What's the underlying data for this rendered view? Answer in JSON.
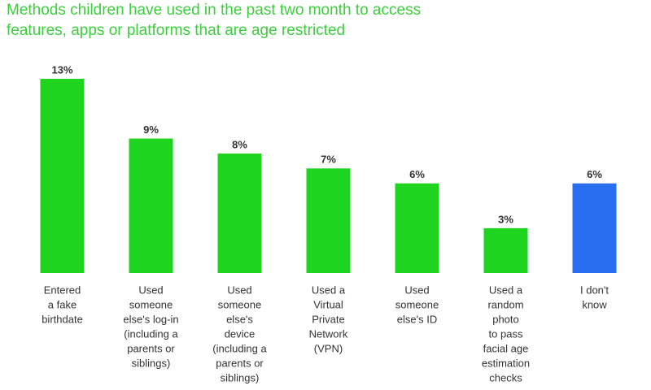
{
  "chart_data": {
    "type": "bar",
    "title": [
      "Methods children have used in the past two month to access",
      "features, apps or platforms that are age restricted"
    ],
    "categories": [
      [
        "Entered",
        "a fake",
        "birthdate"
      ],
      [
        "Used",
        "someone",
        "else's log-in",
        "(including a",
        "parents or",
        "siblings)"
      ],
      [
        "Used",
        "someone",
        "else's",
        "device",
        "(including a",
        "parents or",
        "siblings)"
      ],
      [
        "Used a",
        "Virtual",
        "Private",
        "Network",
        "(VPN)"
      ],
      [
        "Used",
        "someone",
        "else's ID"
      ],
      [
        "Used a",
        "random",
        "photo",
        "to pass",
        "facial age",
        "estimation",
        "checks"
      ],
      [
        "I don't",
        "know"
      ]
    ],
    "values": [
      13,
      9,
      8,
      7,
      6,
      3,
      6
    ],
    "value_labels": [
      "13%",
      "9%",
      "8%",
      "7%",
      "6%",
      "3%",
      "6%"
    ],
    "colors": [
      "#1ed41e",
      "#1ed41e",
      "#1ed41e",
      "#1ed41e",
      "#1ed41e",
      "#1ed41e",
      "#2a6ef0"
    ],
    "title_color": "#3ccf3c"
  }
}
